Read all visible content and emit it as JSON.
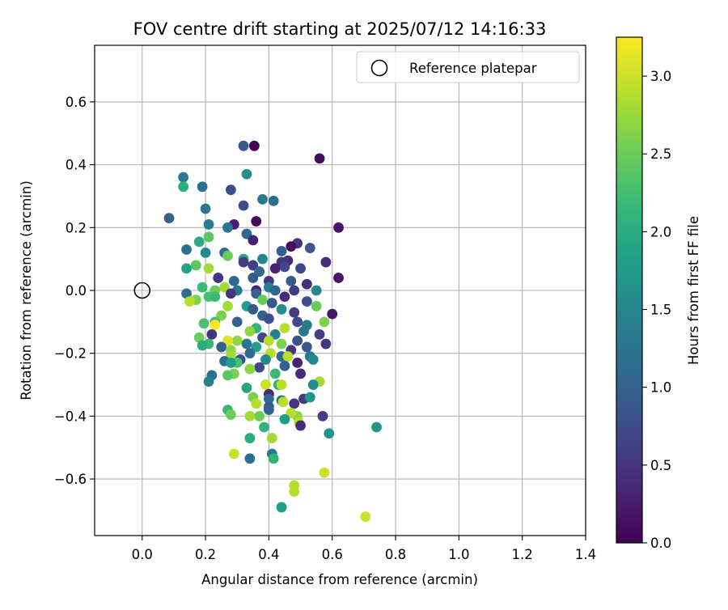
{
  "chart_data": {
    "type": "scatter",
    "title": "FOV centre drift starting at 2025/07/12 14:16:33",
    "xlabel": "Angular distance from reference (arcmin)",
    "ylabel": "Rotation from reference (arcmin)",
    "xlim": [
      -0.15,
      1.4
    ],
    "ylim": [
      -0.78,
      0.78
    ],
    "xticks": [
      0.0,
      0.2,
      0.4,
      0.6,
      0.8,
      1.0,
      1.2,
      1.4
    ],
    "xtick_labels": [
      "0.0",
      "0.2",
      "0.4",
      "0.6",
      "0.8",
      "1.0",
      "1.2",
      "1.4"
    ],
    "yticks": [
      -0.6,
      -0.4,
      -0.2,
      0.0,
      0.2,
      0.4,
      0.6
    ],
    "ytick_labels": [
      "−0.6",
      "−0.4",
      "−0.2",
      "0.0",
      "0.2",
      "0.4",
      "0.6"
    ],
    "grid": true,
    "legend": {
      "position": "upper-right",
      "entries": [
        "Reference platepar"
      ]
    },
    "reference_point": {
      "name": "Reference platepar",
      "x": 0.0,
      "y": 0.0
    },
    "colorbar": {
      "label": "Hours from first FF file",
      "colormap": "viridis",
      "range": [
        0.0,
        3.25
      ],
      "ticks": [
        0.0,
        0.5,
        1.0,
        1.5,
        2.0,
        2.5,
        3.0
      ],
      "tick_labels": [
        "0.0",
        "0.5",
        "1.0",
        "1.5",
        "2.0",
        "2.5",
        "3.0"
      ]
    },
    "points": [
      [
        0.32,
        0.46,
        0.9
      ],
      [
        0.354,
        0.46,
        0.05
      ],
      [
        0.56,
        0.42,
        0.1
      ],
      [
        0.13,
        0.36,
        1.3
      ],
      [
        0.33,
        0.37,
        1.6
      ],
      [
        0.19,
        0.33,
        1.2
      ],
      [
        0.13,
        0.33,
        2.0
      ],
      [
        0.28,
        0.32,
        0.8
      ],
      [
        0.38,
        0.29,
        1.3
      ],
      [
        0.415,
        0.285,
        1.2
      ],
      [
        0.32,
        0.27,
        0.8
      ],
      [
        0.085,
        0.23,
        1.0
      ],
      [
        0.2,
        0.26,
        1.3
      ],
      [
        0.36,
        0.22,
        0.1
      ],
      [
        0.29,
        0.21,
        0.3
      ],
      [
        0.21,
        0.21,
        1.4
      ],
      [
        0.62,
        0.2,
        0.2
      ],
      [
        0.27,
        0.2,
        1.3
      ],
      [
        0.33,
        0.18,
        1.1
      ],
      [
        0.21,
        0.17,
        2.4
      ],
      [
        0.18,
        0.155,
        2.0
      ],
      [
        0.35,
        0.16,
        0.3
      ],
      [
        0.49,
        0.15,
        0.5
      ],
      [
        0.47,
        0.14,
        0.1
      ],
      [
        0.14,
        0.13,
        1.2
      ],
      [
        0.53,
        0.135,
        0.9
      ],
      [
        0.44,
        0.125,
        1.0
      ],
      [
        0.26,
        0.12,
        1.1
      ],
      [
        0.2,
        0.12,
        1.5
      ],
      [
        0.27,
        0.11,
        2.5
      ],
      [
        0.32,
        0.1,
        1.9
      ],
      [
        0.38,
        0.1,
        1.5
      ],
      [
        0.46,
        0.095,
        0.4
      ],
      [
        0.58,
        0.09,
        0.4
      ],
      [
        0.32,
        0.09,
        0.6
      ],
      [
        0.44,
        0.09,
        0.5
      ],
      [
        0.35,
        0.08,
        0.6
      ],
      [
        0.17,
        0.08,
        2.4
      ],
      [
        0.21,
        0.07,
        2.8
      ],
      [
        0.42,
        0.07,
        0.3
      ],
      [
        0.14,
        0.07,
        1.9
      ],
      [
        0.45,
        0.075,
        0.7
      ],
      [
        0.37,
        0.06,
        1.1
      ],
      [
        0.5,
        0.07,
        0.7
      ],
      [
        0.24,
        0.04,
        0.5
      ],
      [
        0.29,
        0.03,
        1.1
      ],
      [
        0.35,
        0.04,
        0.9
      ],
      [
        0.62,
        0.04,
        0.2
      ],
      [
        0.47,
        0.03,
        0.9
      ],
      [
        0.4,
        0.03,
        0.5
      ],
      [
        0.52,
        0.02,
        0.4
      ],
      [
        0.4,
        0.01,
        1.4
      ],
      [
        0.23,
        0.0,
        2.5
      ],
      [
        0.3,
        0.0,
        1.3
      ],
      [
        0.42,
        0.0,
        1.1
      ],
      [
        0.48,
        0.0,
        0.6
      ],
      [
        0.36,
        0.0,
        0.3
      ],
      [
        0.26,
        0.01,
        2.8
      ],
      [
        0.19,
        0.01,
        2.2
      ],
      [
        0.55,
        0.0,
        1.5
      ],
      [
        0.14,
        -0.01,
        1.2
      ],
      [
        0.28,
        -0.01,
        0.5
      ],
      [
        0.45,
        -0.02,
        0.4
      ],
      [
        0.36,
        -0.01,
        1.0
      ],
      [
        0.21,
        -0.02,
        2.3
      ],
      [
        0.17,
        -0.03,
        2.6
      ],
      [
        0.15,
        -0.035,
        2.9
      ],
      [
        0.38,
        -0.03,
        2.5
      ],
      [
        0.52,
        -0.035,
        0.8
      ],
      [
        0.23,
        -0.02,
        2.2
      ],
      [
        0.41,
        -0.04,
        0.9
      ],
      [
        0.33,
        -0.05,
        1.8
      ],
      [
        0.55,
        -0.05,
        2.5
      ],
      [
        0.27,
        -0.05,
        2.8
      ],
      [
        0.44,
        -0.06,
        1.6
      ],
      [
        0.35,
        -0.06,
        0.9
      ],
      [
        0.6,
        -0.075,
        0.2
      ],
      [
        0.48,
        -0.07,
        0.6
      ],
      [
        0.38,
        -0.08,
        1.0
      ],
      [
        0.25,
        -0.08,
        2.6
      ],
      [
        0.4,
        -0.09,
        0.8
      ],
      [
        0.23,
        -0.1,
        2.3
      ],
      [
        0.3,
        -0.1,
        1.0
      ],
      [
        0.195,
        -0.105,
        2.3
      ],
      [
        0.575,
        -0.1,
        2.6
      ],
      [
        0.49,
        -0.1,
        0.7
      ],
      [
        0.52,
        -0.11,
        1.4
      ],
      [
        0.23,
        -0.11,
        3.25
      ],
      [
        0.36,
        -0.12,
        2.1
      ],
      [
        0.45,
        -0.12,
        2.9
      ],
      [
        0.22,
        -0.14,
        0.5
      ],
      [
        0.34,
        -0.13,
        2.7
      ],
      [
        0.42,
        -0.14,
        1.4
      ],
      [
        0.51,
        -0.13,
        1.3
      ],
      [
        0.56,
        -0.14,
        0.6
      ],
      [
        0.38,
        -0.15,
        0.7
      ],
      [
        0.18,
        -0.15,
        2.5
      ],
      [
        0.3,
        -0.16,
        2.7
      ],
      [
        0.4,
        -0.16,
        2.9
      ],
      [
        0.49,
        -0.16,
        0.8
      ],
      [
        0.27,
        -0.16,
        3.1
      ],
      [
        0.58,
        -0.17,
        0.5
      ],
      [
        0.44,
        -0.17,
        2.6
      ],
      [
        0.33,
        -0.17,
        1.3
      ],
      [
        0.21,
        -0.17,
        2.2
      ],
      [
        0.19,
        -0.175,
        2.0
      ],
      [
        0.25,
        -0.18,
        1.0
      ],
      [
        0.36,
        -0.18,
        1.8
      ],
      [
        0.28,
        -0.19,
        2.7
      ],
      [
        0.47,
        -0.19,
        0.5
      ],
      [
        0.52,
        -0.18,
        0.9
      ],
      [
        0.405,
        -0.2,
        2.9
      ],
      [
        0.34,
        -0.2,
        1.1
      ],
      [
        0.44,
        -0.21,
        1.1
      ],
      [
        0.53,
        -0.21,
        1.3
      ],
      [
        0.28,
        -0.21,
        2.8
      ],
      [
        0.46,
        -0.21,
        2.9
      ],
      [
        0.31,
        -0.22,
        0.8
      ],
      [
        0.39,
        -0.22,
        1.5
      ],
      [
        0.26,
        -0.225,
        1.2
      ],
      [
        0.54,
        -0.22,
        1.5
      ],
      [
        0.49,
        -0.23,
        0.3
      ],
      [
        0.3,
        -0.23,
        2.3
      ],
      [
        0.28,
        -0.23,
        1.8
      ],
      [
        0.45,
        -0.24,
        1.0
      ],
      [
        0.37,
        -0.245,
        0.7
      ],
      [
        0.34,
        -0.25,
        2.7
      ],
      [
        0.22,
        -0.27,
        1.2
      ],
      [
        0.29,
        -0.265,
        2.6
      ],
      [
        0.42,
        -0.265,
        2.2
      ],
      [
        0.27,
        -0.27,
        2.4
      ],
      [
        0.5,
        -0.265,
        0.4
      ],
      [
        0.56,
        -0.29,
        2.8
      ],
      [
        0.21,
        -0.29,
        1.4
      ],
      [
        0.43,
        -0.3,
        2.1
      ],
      [
        0.44,
        -0.3,
        2.9
      ],
      [
        0.39,
        -0.3,
        3.0
      ],
      [
        0.54,
        -0.3,
        1.6
      ],
      [
        0.33,
        -0.31,
        1.9
      ],
      [
        0.4,
        -0.33,
        0.4
      ],
      [
        0.35,
        -0.34,
        2.6
      ],
      [
        0.51,
        -0.345,
        0.6
      ],
      [
        0.53,
        -0.34,
        1.7
      ],
      [
        0.4,
        -0.345,
        1.1
      ],
      [
        0.44,
        -0.35,
        1.2
      ],
      [
        0.36,
        -0.36,
        2.9
      ],
      [
        0.48,
        -0.36,
        0.5
      ],
      [
        0.445,
        -0.355,
        2.9
      ],
      [
        0.4,
        -0.37,
        0.9
      ],
      [
        0.27,
        -0.38,
        2.2
      ],
      [
        0.4,
        -0.38,
        1.0
      ],
      [
        0.49,
        -0.4,
        2.7
      ],
      [
        0.57,
        -0.4,
        0.6
      ],
      [
        0.28,
        -0.395,
        2.5
      ],
      [
        0.47,
        -0.39,
        2.9
      ],
      [
        0.37,
        -0.4,
        2.5
      ],
      [
        0.34,
        -0.4,
        2.8
      ],
      [
        0.45,
        -0.41,
        1.8
      ],
      [
        0.495,
        -0.42,
        2.9
      ],
      [
        0.5,
        -0.43,
        0.4
      ],
      [
        0.385,
        -0.435,
        2.1
      ],
      [
        0.59,
        -0.455,
        1.7
      ],
      [
        0.74,
        -0.435,
        1.7
      ],
      [
        0.34,
        -0.47,
        2.0
      ],
      [
        0.41,
        -0.47,
        2.8
      ],
      [
        0.29,
        -0.52,
        3.0
      ],
      [
        0.41,
        -0.52,
        1.3
      ],
      [
        0.415,
        -0.535,
        2.1
      ],
      [
        0.34,
        -0.535,
        1.2
      ],
      [
        0.575,
        -0.58,
        3.0
      ],
      [
        0.48,
        -0.62,
        2.9
      ],
      [
        0.48,
        -0.64,
        2.9
      ],
      [
        0.44,
        -0.69,
        1.8
      ],
      [
        0.705,
        -0.72,
        3.0
      ]
    ]
  }
}
